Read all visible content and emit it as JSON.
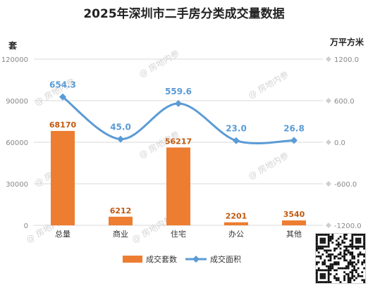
{
  "chart_data": {
    "type": "bar",
    "title": "2025年深圳市二手房分类成交量数据",
    "categories": [
      "总量",
      "商业",
      "住宅",
      "办公",
      "其他"
    ],
    "series": [
      {
        "name": "成交套数",
        "type": "bar",
        "axis": "left",
        "values": [
          68170,
          6212,
          56217,
          2201,
          3540
        ],
        "labels": [
          "68170",
          "6212",
          "56217",
          "2201",
          "3540"
        ]
      },
      {
        "name": "成交面积",
        "type": "line",
        "axis": "right",
        "values": [
          654.3,
          45.0,
          559.6,
          23.0,
          26.8
        ],
        "labels": [
          "654.3",
          "45.0",
          "559.6",
          "23.0",
          "26.8"
        ]
      }
    ],
    "ylabel_left": "套",
    "ylabel_right": "万平方米",
    "ylim_left": [
      0,
      120000
    ],
    "ylim_right": [
      -1200.0,
      1200.0
    ],
    "yticks_left": [
      "0",
      "30000",
      "60000",
      "90000",
      "120000"
    ],
    "yticks_right": [
      "-1200.0",
      "-600.0",
      "0.0",
      "600.0",
      "1200.0"
    ],
    "grid": true,
    "legend_position": "bottom",
    "colors": {
      "bar": "#ed7d31",
      "line": "#5b9bd5",
      "grid": "#d9d9d9"
    }
  },
  "watermark": "房地内参"
}
